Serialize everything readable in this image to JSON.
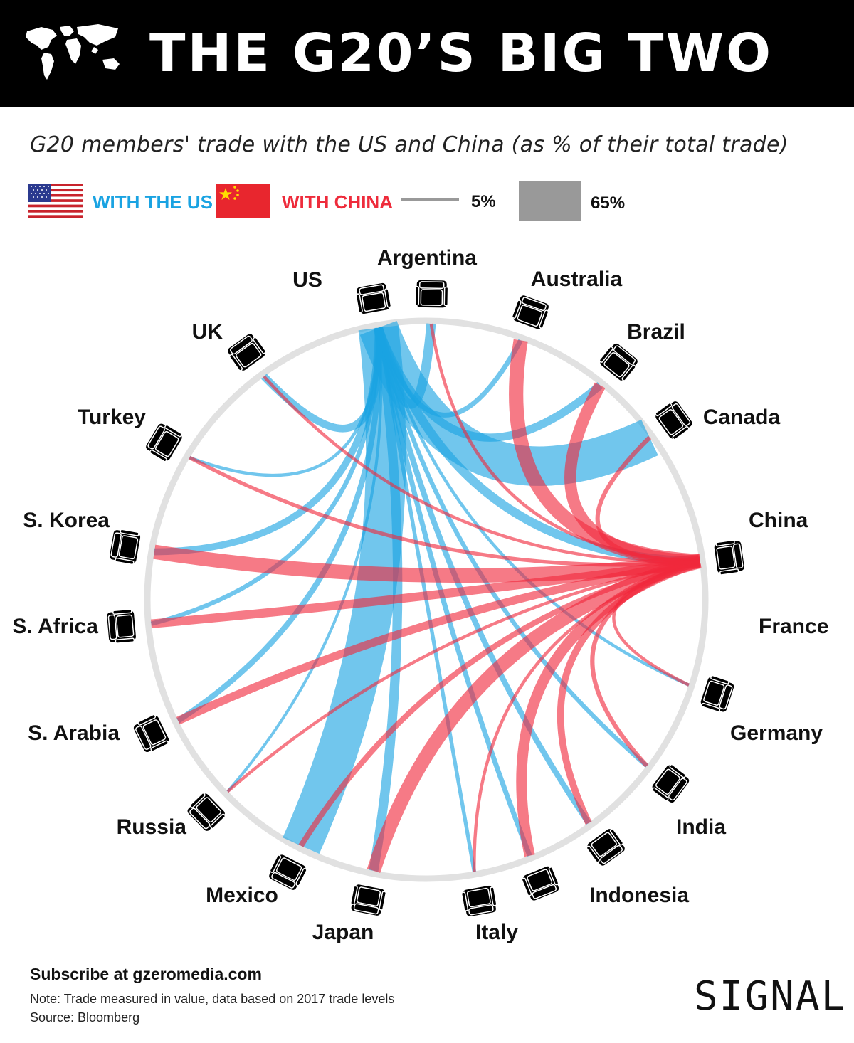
{
  "header": {
    "title": "THE G20’S BIG TWO",
    "globe_icon": "world-map-icon"
  },
  "subtitle": "G20 members' trade with the US and China (as % of their total trade)",
  "legend": {
    "us_label": "WITH THE US",
    "china_label": "WITH CHINA",
    "small_scale_label": "5%",
    "large_scale_label": "65%",
    "us_color": "#1aa3e2",
    "china_color": "#f0283c",
    "scale_color": "#999999"
  },
  "countries": [
    {
      "name": "US"
    },
    {
      "name": "Argentina"
    },
    {
      "name": "Australia"
    },
    {
      "name": "Brazil"
    },
    {
      "name": "Canada"
    },
    {
      "name": "China"
    },
    {
      "name": "France"
    },
    {
      "name": "Germany"
    },
    {
      "name": "India"
    },
    {
      "name": "Indonesia"
    },
    {
      "name": "Italy"
    },
    {
      "name": "Japan"
    },
    {
      "name": "Mexico"
    },
    {
      "name": "Russia"
    },
    {
      "name": "S. Arabia"
    },
    {
      "name": "S. Africa"
    },
    {
      "name": "S. Korea"
    },
    {
      "name": "Turkey"
    },
    {
      "name": "UK"
    }
  ],
  "flows": {
    "with_us": [
      {
        "country": "Argentina",
        "pct": 15
      },
      {
        "country": "Australia",
        "pct": 8
      },
      {
        "country": "Brazil",
        "pct": 13
      },
      {
        "country": "Canada",
        "pct": 63
      },
      {
        "country": "France",
        "pct": 5
      },
      {
        "country": "Germany",
        "pct": 7
      },
      {
        "country": "India",
        "pct": 9
      },
      {
        "country": "Indonesia",
        "pct": 8
      },
      {
        "country": "Italy",
        "pct": 6
      },
      {
        "country": "Japan",
        "pct": 15
      },
      {
        "country": "Mexico",
        "pct": 64
      },
      {
        "country": "Russia",
        "pct": 3
      },
      {
        "country": "S. Arabia",
        "pct": 9
      },
      {
        "country": "S. Africa",
        "pct": 7
      },
      {
        "country": "S. Korea",
        "pct": 11
      },
      {
        "country": "Turkey",
        "pct": 5
      },
      {
        "country": "UK",
        "pct": 12
      },
      {
        "country": "China",
        "pct": 14
      }
    ],
    "with_china": [
      {
        "country": "Argentina",
        "pct": 5
      },
      {
        "country": "Australia",
        "pct": 23
      },
      {
        "country": "Brazil",
        "pct": 19
      },
      {
        "country": "Canada",
        "pct": 7
      },
      {
        "country": "France",
        "pct": 5
      },
      {
        "country": "Germany",
        "pct": 7
      },
      {
        "country": "India",
        "pct": 11
      },
      {
        "country": "Indonesia",
        "pct": 17
      },
      {
        "country": "Italy",
        "pct": 5
      },
      {
        "country": "Japan",
        "pct": 22
      },
      {
        "country": "Mexico",
        "pct": 9
      },
      {
        "country": "Russia",
        "pct": 5
      },
      {
        "country": "S. Arabia",
        "pct": 13
      },
      {
        "country": "S. Africa",
        "pct": 14
      },
      {
        "country": "S. Korea",
        "pct": 23
      },
      {
        "country": "Turkey",
        "pct": 6
      },
      {
        "country": "UK",
        "pct": 5
      }
    ]
  },
  "footer": {
    "subscribe": "Subscribe at gzeromedia.com",
    "note": "Note: Trade measured in value, data based on 2017 trade levels",
    "source": "Source: Bloomberg",
    "brand": "SIGNAL"
  }
}
